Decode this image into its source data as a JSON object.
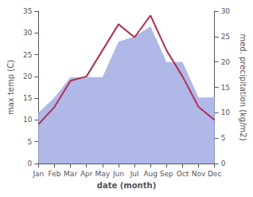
{
  "chart_data": {
    "type": "line",
    "categories": [
      "Jan",
      "Feb",
      "Mar",
      "Apr",
      "May",
      "Jun",
      "Jul",
      "Aug",
      "Sep",
      "Oct",
      "Nov",
      "Dec"
    ],
    "xlabel": "date (month)",
    "ylabel": "max temp (C)",
    "y2label": "med. precipitation (kg/m2)",
    "ylim": [
      0,
      35
    ],
    "yticks": [
      0,
      5,
      10,
      15,
      20,
      25,
      30,
      35
    ],
    "y2lim": [
      0,
      30
    ],
    "y2ticks": [
      0,
      5,
      10,
      15,
      20,
      25,
      30
    ],
    "grid": false,
    "series": [
      {
        "type": "area",
        "color": "#b0b8e8",
        "axis": "y2",
        "values": [
          10,
          13,
          17,
          17,
          17,
          24,
          25,
          27,
          20,
          20,
          13,
          13
        ]
      },
      {
        "type": "line",
        "color": "#b03050",
        "values": [
          9,
          13,
          19,
          20,
          26,
          32,
          29,
          34,
          26,
          20,
          13,
          10
        ]
      }
    ]
  }
}
